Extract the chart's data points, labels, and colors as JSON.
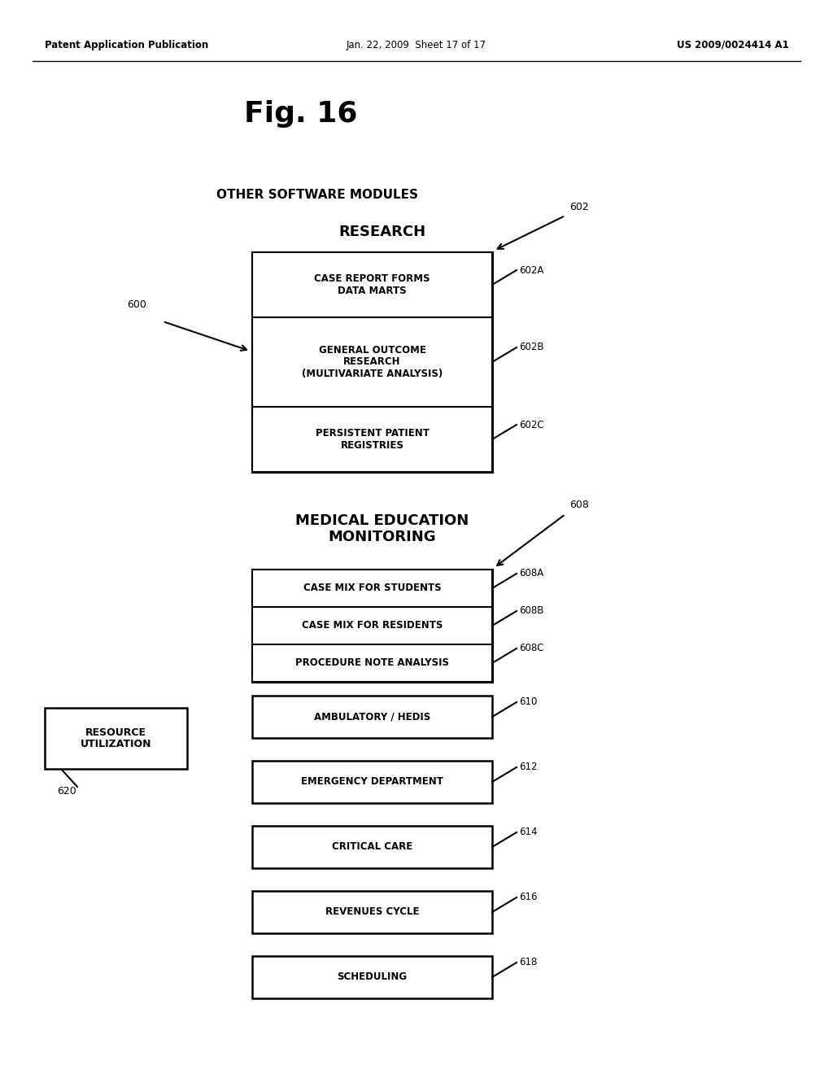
{
  "bg_color": "#ffffff",
  "header_left": "Patent Application Publication",
  "header_mid": "Jan. 22, 2009  Sheet 17 of 17",
  "header_right": "US 2009/0024414 A1",
  "fig_title": "Fig. 16",
  "other_sw_label": "OTHER SOFTWARE MODULES",
  "research_title": "RESEARCH",
  "research_group_label": "602",
  "research_arrow_label": "600",
  "research_boxes": [
    {
      "text": "CASE REPORT FORMS\nDATA MARTS",
      "ref": "602A"
    },
    {
      "text": "GENERAL OUTCOME\nRESEARCH\n(MULTIVARIATE ANALYSIS)",
      "ref": "602B"
    },
    {
      "text": "PERSISTENT PATIENT\nREGISTRIES",
      "ref": "602C"
    }
  ],
  "medical_title": "MEDICAL EDUCATION\nMONITORING",
  "medical_group_label": "608",
  "medical_boxes": [
    {
      "text": "CASE MIX FOR STUDENTS",
      "ref": "608A"
    },
    {
      "text": "CASE MIX FOR RESIDENTS",
      "ref": "608B"
    },
    {
      "text": "PROCEDURE NOTE ANALYSIS",
      "ref": "608C"
    }
  ],
  "resource_label": "RESOURCE\nUTILIZATION",
  "resource_ref": "620",
  "resource_boxes": [
    {
      "text": "AMBULATORY / HEDIS",
      "ref": "610"
    },
    {
      "text": "EMERGENCY DEPARTMENT",
      "ref": "612"
    },
    {
      "text": "CRITICAL CARE",
      "ref": "614"
    },
    {
      "text": "REVENUES CYCLE",
      "ref": "616"
    },
    {
      "text": "SCHEDULING",
      "ref": "618"
    }
  ]
}
